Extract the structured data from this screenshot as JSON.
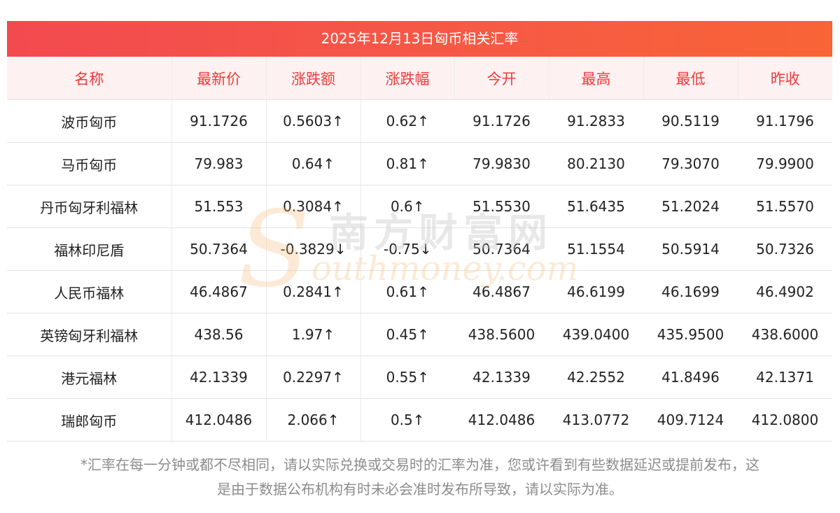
{
  "title": "2025年12月13日匈币相关汇率",
  "columns": [
    "名称",
    "最新价",
    "涨跌额",
    "涨跌幅",
    "今开",
    "最高",
    "最低",
    "昨收"
  ],
  "rows": [
    {
      "name": "波币匈币",
      "latest": "91.1726",
      "change": "0.5603↑",
      "pct": "0.62↑",
      "open": "91.1726",
      "high": "91.2833",
      "low": "90.5119",
      "prev": "91.1796",
      "trend": "up"
    },
    {
      "name": "马币匈币",
      "latest": "79.983",
      "change": "0.64↑",
      "pct": "0.81↑",
      "open": "79.9830",
      "high": "80.2130",
      "low": "79.3070",
      "prev": "79.9900",
      "trend": "up"
    },
    {
      "name": "丹币匈牙利福林",
      "latest": "51.553",
      "change": "0.3084↑",
      "pct": "0.6↑",
      "open": "51.5530",
      "high": "51.6435",
      "low": "51.2024",
      "prev": "51.5570",
      "trend": "up"
    },
    {
      "name": "福林印尼盾",
      "latest": "50.7364",
      "change": "-0.3829↓",
      "pct": "-0.75↓",
      "open": "50.7364",
      "high": "51.1554",
      "low": "50.5914",
      "prev": "50.7326",
      "trend": "down"
    },
    {
      "name": "人民币福林",
      "latest": "46.4867",
      "change": "0.2841↑",
      "pct": "0.61↑",
      "open": "46.4867",
      "high": "46.6199",
      "low": "46.1699",
      "prev": "46.4902",
      "trend": "up"
    },
    {
      "name": "英镑匈牙利福林",
      "latest": "438.56",
      "change": "1.97↑",
      "pct": "0.45↑",
      "open": "438.5600",
      "high": "439.0400",
      "low": "435.9500",
      "prev": "438.6000",
      "trend": "up"
    },
    {
      "name": "港元福林",
      "latest": "42.1339",
      "change": "0.2297↑",
      "pct": "0.55↑",
      "open": "42.1339",
      "high": "42.2552",
      "low": "41.8496",
      "prev": "42.1371",
      "trend": "up"
    },
    {
      "name": "瑞郎匈币",
      "latest": "412.0486",
      "change": "2.066↑",
      "pct": "0.5↑",
      "open": "412.0486",
      "high": "413.0772",
      "low": "409.7124",
      "prev": "412.0800",
      "trend": "up"
    }
  ],
  "footnote": {
    "line1": "*汇率在每一分钟或都不尽相同，请以实际兑换或交易时的汇率为准，您或许看到有些数据延迟或提前发布，这",
    "line2": "是由于数据公布机构有时未必会准时发布所导致，请以实际为准。"
  },
  "watermark": {
    "cn": "南方财富网",
    "en": "outhmoney.com",
    "initial": "S"
  },
  "colors": {
    "title_bar_start": "#f34a4f",
    "title_bar_end": "#f86436",
    "header_bg": "#fdf1f1",
    "header_text": "#f03a3a",
    "up": "#f11212",
    "down": "#0e8a1a"
  }
}
